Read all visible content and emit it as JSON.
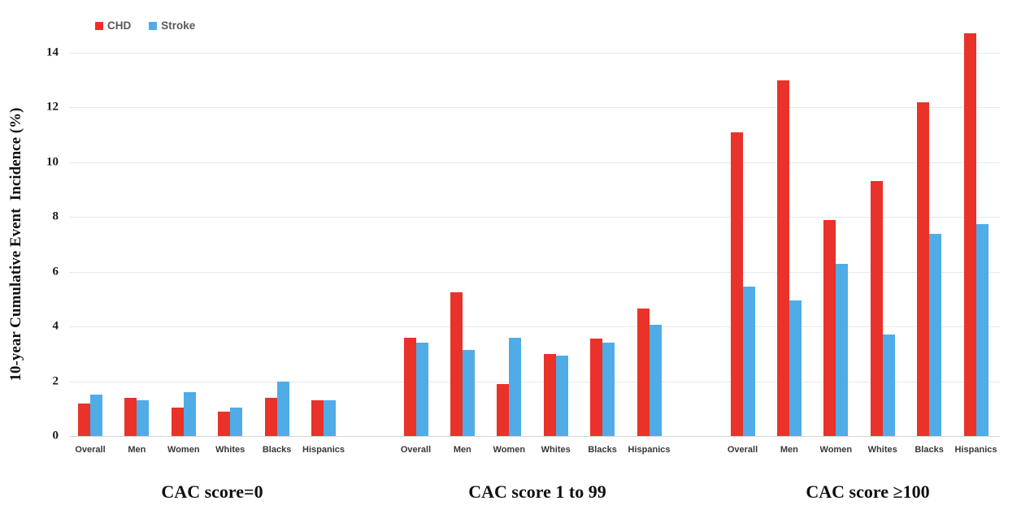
{
  "legend": {
    "items": [
      {
        "label": "CHD",
        "color": "#e93229"
      },
      {
        "label": "Stroke",
        "color": "#4face6"
      }
    ]
  },
  "y_axis": {
    "title": "10-year Cumulative Event  Incidence (%)",
    "ticks": [
      0,
      2,
      4,
      6,
      8,
      10,
      12,
      14
    ]
  },
  "colors": {
    "chd": "#e93229",
    "stroke": "#4face6",
    "gridline": "#e8e8e8",
    "baseline": "#d6d6d6"
  },
  "chart_data": {
    "type": "bar",
    "title": "",
    "xlabel": "",
    "ylabel": "10-year Cumulative Event Incidence (%)",
    "ylim": [
      0,
      14
    ],
    "grid": true,
    "legend_position": "top-left",
    "categories": [
      "Overall",
      "Men",
      "Women",
      "Whites",
      "Blacks",
      "Hispanics"
    ],
    "panels": [
      {
        "title": "CAC score=0",
        "series": [
          {
            "name": "CHD",
            "values": [
              1.2,
              1.4,
              1.05,
              0.9,
              1.4,
              1.3
            ]
          },
          {
            "name": "Stroke",
            "values": [
              1.5,
              1.3,
              1.6,
              1.05,
              2.0,
              1.3
            ]
          }
        ]
      },
      {
        "title": "CAC score 1 to 99",
        "series": [
          {
            "name": "CHD",
            "values": [
              3.6,
              5.25,
              1.9,
              3.0,
              3.55,
              4.65
            ]
          },
          {
            "name": "Stroke",
            "values": [
              3.4,
              3.15,
              3.6,
              2.95,
              3.4,
              4.05
            ]
          }
        ]
      },
      {
        "title": "CAC score ≥100",
        "series": [
          {
            "name": "CHD",
            "values": [
              11.1,
              13.0,
              7.9,
              9.3,
              12.2,
              14.7
            ]
          },
          {
            "name": "Stroke",
            "values": [
              5.45,
              4.95,
              6.3,
              3.7,
              7.4,
              7.75
            ]
          }
        ]
      }
    ]
  }
}
